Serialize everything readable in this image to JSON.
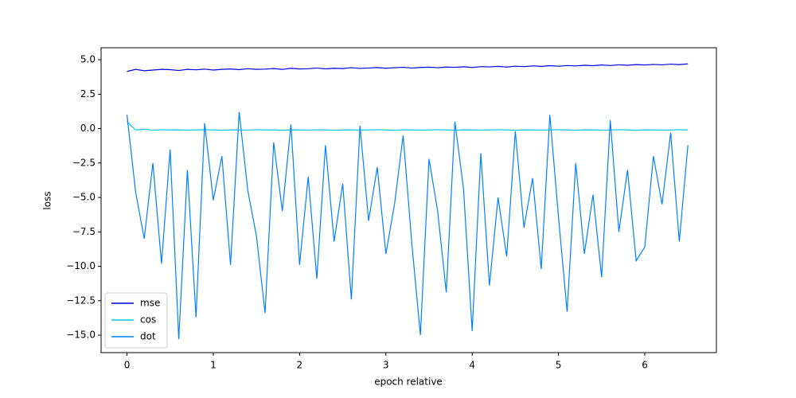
{
  "chart_data": {
    "type": "line",
    "xlabel": "epoch relative",
    "ylabel": "loss",
    "x": [
      0,
      0.1,
      0.2,
      0.3,
      0.4,
      0.5,
      0.6,
      0.7,
      0.8,
      0.9,
      1.0,
      1.1,
      1.2,
      1.3,
      1.4,
      1.5,
      1.6,
      1.7,
      1.8,
      1.9,
      2.0,
      2.1,
      2.2,
      2.3,
      2.4,
      2.5,
      2.6,
      2.7,
      2.8,
      2.9,
      3.0,
      3.1,
      3.2,
      3.3,
      3.4,
      3.5,
      3.6,
      3.7,
      3.8,
      3.9,
      4.0,
      4.1,
      4.2,
      4.3,
      4.4,
      4.5,
      4.6,
      4.7,
      4.8,
      4.9,
      5.0,
      5.1,
      5.2,
      5.3,
      5.4,
      5.5,
      5.6,
      5.7,
      5.8,
      5.9,
      6.0,
      6.1,
      6.2,
      6.3,
      6.4,
      6.5
    ],
    "series": [
      {
        "name": "mse",
        "color": "#0000e6",
        "values": [
          4.15,
          4.3,
          4.2,
          4.25,
          4.3,
          4.28,
          4.22,
          4.3,
          4.27,
          4.32,
          4.25,
          4.3,
          4.33,
          4.28,
          4.35,
          4.3,
          4.32,
          4.36,
          4.3,
          4.38,
          4.33,
          4.35,
          4.4,
          4.34,
          4.38,
          4.36,
          4.42,
          4.37,
          4.4,
          4.43,
          4.38,
          4.42,
          4.45,
          4.4,
          4.44,
          4.46,
          4.42,
          4.47,
          4.45,
          4.49,
          4.44,
          4.5,
          4.48,
          4.52,
          4.47,
          4.53,
          4.5,
          4.55,
          4.52,
          4.57,
          4.53,
          4.58,
          4.55,
          4.6,
          4.57,
          4.62,
          4.58,
          4.63,
          4.6,
          4.65,
          4.62,
          4.66,
          4.63,
          4.68,
          4.65,
          4.7
        ]
      },
      {
        "name": "cos",
        "color": "#00c8f0",
        "values": [
          0.5,
          -0.1,
          -0.05,
          -0.12,
          -0.08,
          -0.1,
          -0.09,
          -0.11,
          -0.1,
          -0.08,
          -0.1,
          -0.12,
          -0.09,
          -0.1,
          -0.11,
          -0.08,
          -0.1,
          -0.1,
          -0.12,
          -0.09,
          -0.1,
          -0.11,
          -0.08,
          -0.1,
          -0.12,
          -0.1,
          -0.09,
          -0.11,
          -0.1,
          -0.08,
          -0.1,
          -0.12,
          -0.09,
          -0.1,
          -0.11,
          -0.1,
          -0.08,
          -0.1,
          -0.12,
          -0.09,
          -0.1,
          -0.11,
          -0.1,
          -0.08,
          -0.1,
          -0.12,
          -0.09,
          -0.1,
          -0.11,
          -0.1,
          -0.08,
          -0.1,
          -0.12,
          -0.09,
          -0.1,
          -0.11,
          -0.1,
          -0.08,
          -0.1,
          -0.12,
          -0.09,
          -0.1,
          -0.11,
          -0.1,
          -0.08,
          -0.1
        ]
      },
      {
        "name": "dot",
        "color": "#0080ff",
        "values": [
          1.0,
          -4.6,
          -8.0,
          -2.5,
          -9.8,
          -1.5,
          -15.3,
          -3.0,
          -13.7,
          0.4,
          -5.2,
          -2.0,
          -9.9,
          1.2,
          -4.5,
          -7.8,
          -13.4,
          -1.0,
          -6.0,
          0.3,
          -9.9,
          -3.5,
          -10.9,
          -1.2,
          -8.2,
          -4.0,
          -12.4,
          0.2,
          -6.7,
          -2.8,
          -9.1,
          -5.5,
          -0.5,
          -8.3,
          -15.0,
          -2.2,
          -6.0,
          -11.9,
          0.5,
          -4.4,
          -14.7,
          -1.8,
          -11.4,
          -5.0,
          -9.3,
          -0.2,
          -7.2,
          -3.6,
          -10.2,
          1.0,
          -6.4,
          -13.3,
          -2.5,
          -9.1,
          -4.8,
          -10.8,
          0.6,
          -7.5,
          -3.0,
          -9.6,
          -8.6,
          -2.0,
          -5.5,
          -0.3,
          -8.2,
          -1.2
        ]
      }
    ],
    "xlim": [
      -0.3,
      6.83
    ],
    "ylim": [
      -16.27,
      5.87
    ],
    "xticks": [
      0,
      1,
      2,
      3,
      4,
      5,
      6
    ],
    "yticks": [
      {
        "value": -15,
        "label": "−15.0"
      },
      {
        "value": -12.5,
        "label": "−12.5"
      },
      {
        "value": -10,
        "label": "−10.0"
      },
      {
        "value": -7.5,
        "label": "−7.5"
      },
      {
        "value": -5,
        "label": "−5.0"
      },
      {
        "value": -2.5,
        "label": "−2.5"
      },
      {
        "value": 0,
        "label": "0.0"
      },
      {
        "value": 2.5,
        "label": "2.5"
      },
      {
        "value": 5,
        "label": "5.0"
      }
    ],
    "legend": "lower left",
    "grid": false
  }
}
